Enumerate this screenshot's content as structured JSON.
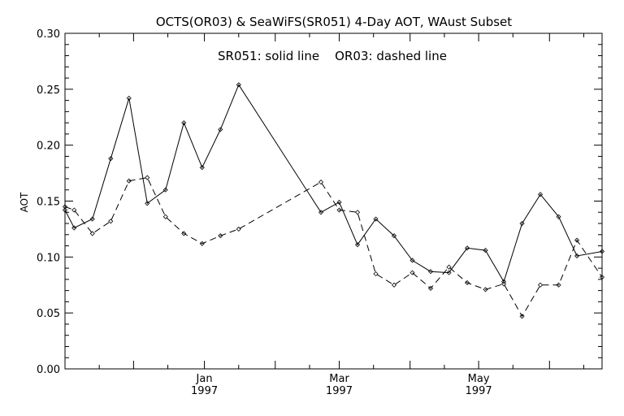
{
  "chart_data": {
    "type": "line",
    "title": "OCTS(OR03) & SeaWiFS(SR051) 4-Day AOT, WAust Subset",
    "annotation": "SR051: solid line    OR03: dashed line",
    "xlabel": "",
    "ylabel": "AOT",
    "ylim": [
      0.0,
      0.3
    ],
    "xlim": [
      "1996-11-01",
      "1997-06-24"
    ],
    "grid": false,
    "yticks": [
      "0.00",
      "0.05",
      "0.10",
      "0.15",
      "0.20",
      "0.25",
      "0.30"
    ],
    "xticks": [
      {
        "date": "1997-01-01",
        "month": "Jan",
        "year": "1997"
      },
      {
        "date": "1997-03-01",
        "month": "Mar",
        "year": "1997"
      },
      {
        "date": "1997-05-01",
        "month": "May",
        "year": "1997"
      }
    ],
    "series": [
      {
        "name": "SR051",
        "style": "solid",
        "color": "#000000",
        "points": [
          [
            "1996-11-01",
            0.142
          ],
          [
            "1996-11-05",
            0.126
          ],
          [
            "1996-11-13",
            0.134
          ],
          [
            "1996-11-21",
            0.188
          ],
          [
            "1996-11-29",
            0.242
          ],
          [
            "1996-12-07",
            0.148
          ],
          [
            "1996-12-15",
            0.16
          ],
          [
            "1996-12-23",
            0.22
          ],
          [
            "1996-12-31",
            0.18
          ],
          [
            "1997-01-08",
            0.214
          ],
          [
            "1997-01-16",
            0.254
          ],
          [
            "1997-02-21",
            0.14
          ],
          [
            "1997-03-01",
            0.149
          ],
          [
            "1997-03-09",
            0.111
          ],
          [
            "1997-03-17",
            0.134
          ],
          [
            "1997-03-25",
            0.119
          ],
          [
            "1997-04-02",
            0.097
          ],
          [
            "1997-04-10",
            0.087
          ],
          [
            "1997-04-18",
            0.086
          ],
          [
            "1997-04-26",
            0.108
          ],
          [
            "1997-05-04",
            0.106
          ],
          [
            "1997-05-12",
            0.078
          ],
          [
            "1997-05-20",
            0.13
          ],
          [
            "1997-05-28",
            0.156
          ],
          [
            "1997-06-05",
            0.136
          ],
          [
            "1997-06-13",
            0.101
          ],
          [
            "1997-06-24",
            0.105
          ]
        ]
      },
      {
        "name": "OR03",
        "style": "dashed",
        "color": "#000000",
        "points": [
          [
            "1996-11-01",
            0.145
          ],
          [
            "1996-11-05",
            0.142
          ],
          [
            "1996-11-13",
            0.121
          ],
          [
            "1996-11-21",
            0.132
          ],
          [
            "1996-11-29",
            0.168
          ],
          [
            "1996-12-07",
            0.171
          ],
          [
            "1996-12-15",
            0.136
          ],
          [
            "1996-12-23",
            0.121
          ],
          [
            "1996-12-31",
            0.112
          ],
          [
            "1997-01-08",
            0.119
          ],
          [
            "1997-01-16",
            0.125
          ],
          [
            "1997-02-21",
            0.167
          ],
          [
            "1997-03-01",
            0.142
          ],
          [
            "1997-03-09",
            0.14
          ],
          [
            "1997-03-17",
            0.085
          ],
          [
            "1997-03-25",
            0.075
          ],
          [
            "1997-04-02",
            0.086
          ],
          [
            "1997-04-10",
            0.072
          ],
          [
            "1997-04-18",
            0.091
          ],
          [
            "1997-04-26",
            0.077
          ],
          [
            "1997-05-04",
            0.071
          ],
          [
            "1997-05-12",
            0.076
          ],
          [
            "1997-05-20",
            0.047
          ],
          [
            "1997-05-28",
            0.075
          ],
          [
            "1997-06-05",
            0.075
          ],
          [
            "1997-06-13",
            0.115
          ],
          [
            "1997-06-24",
            0.082
          ]
        ]
      }
    ]
  }
}
